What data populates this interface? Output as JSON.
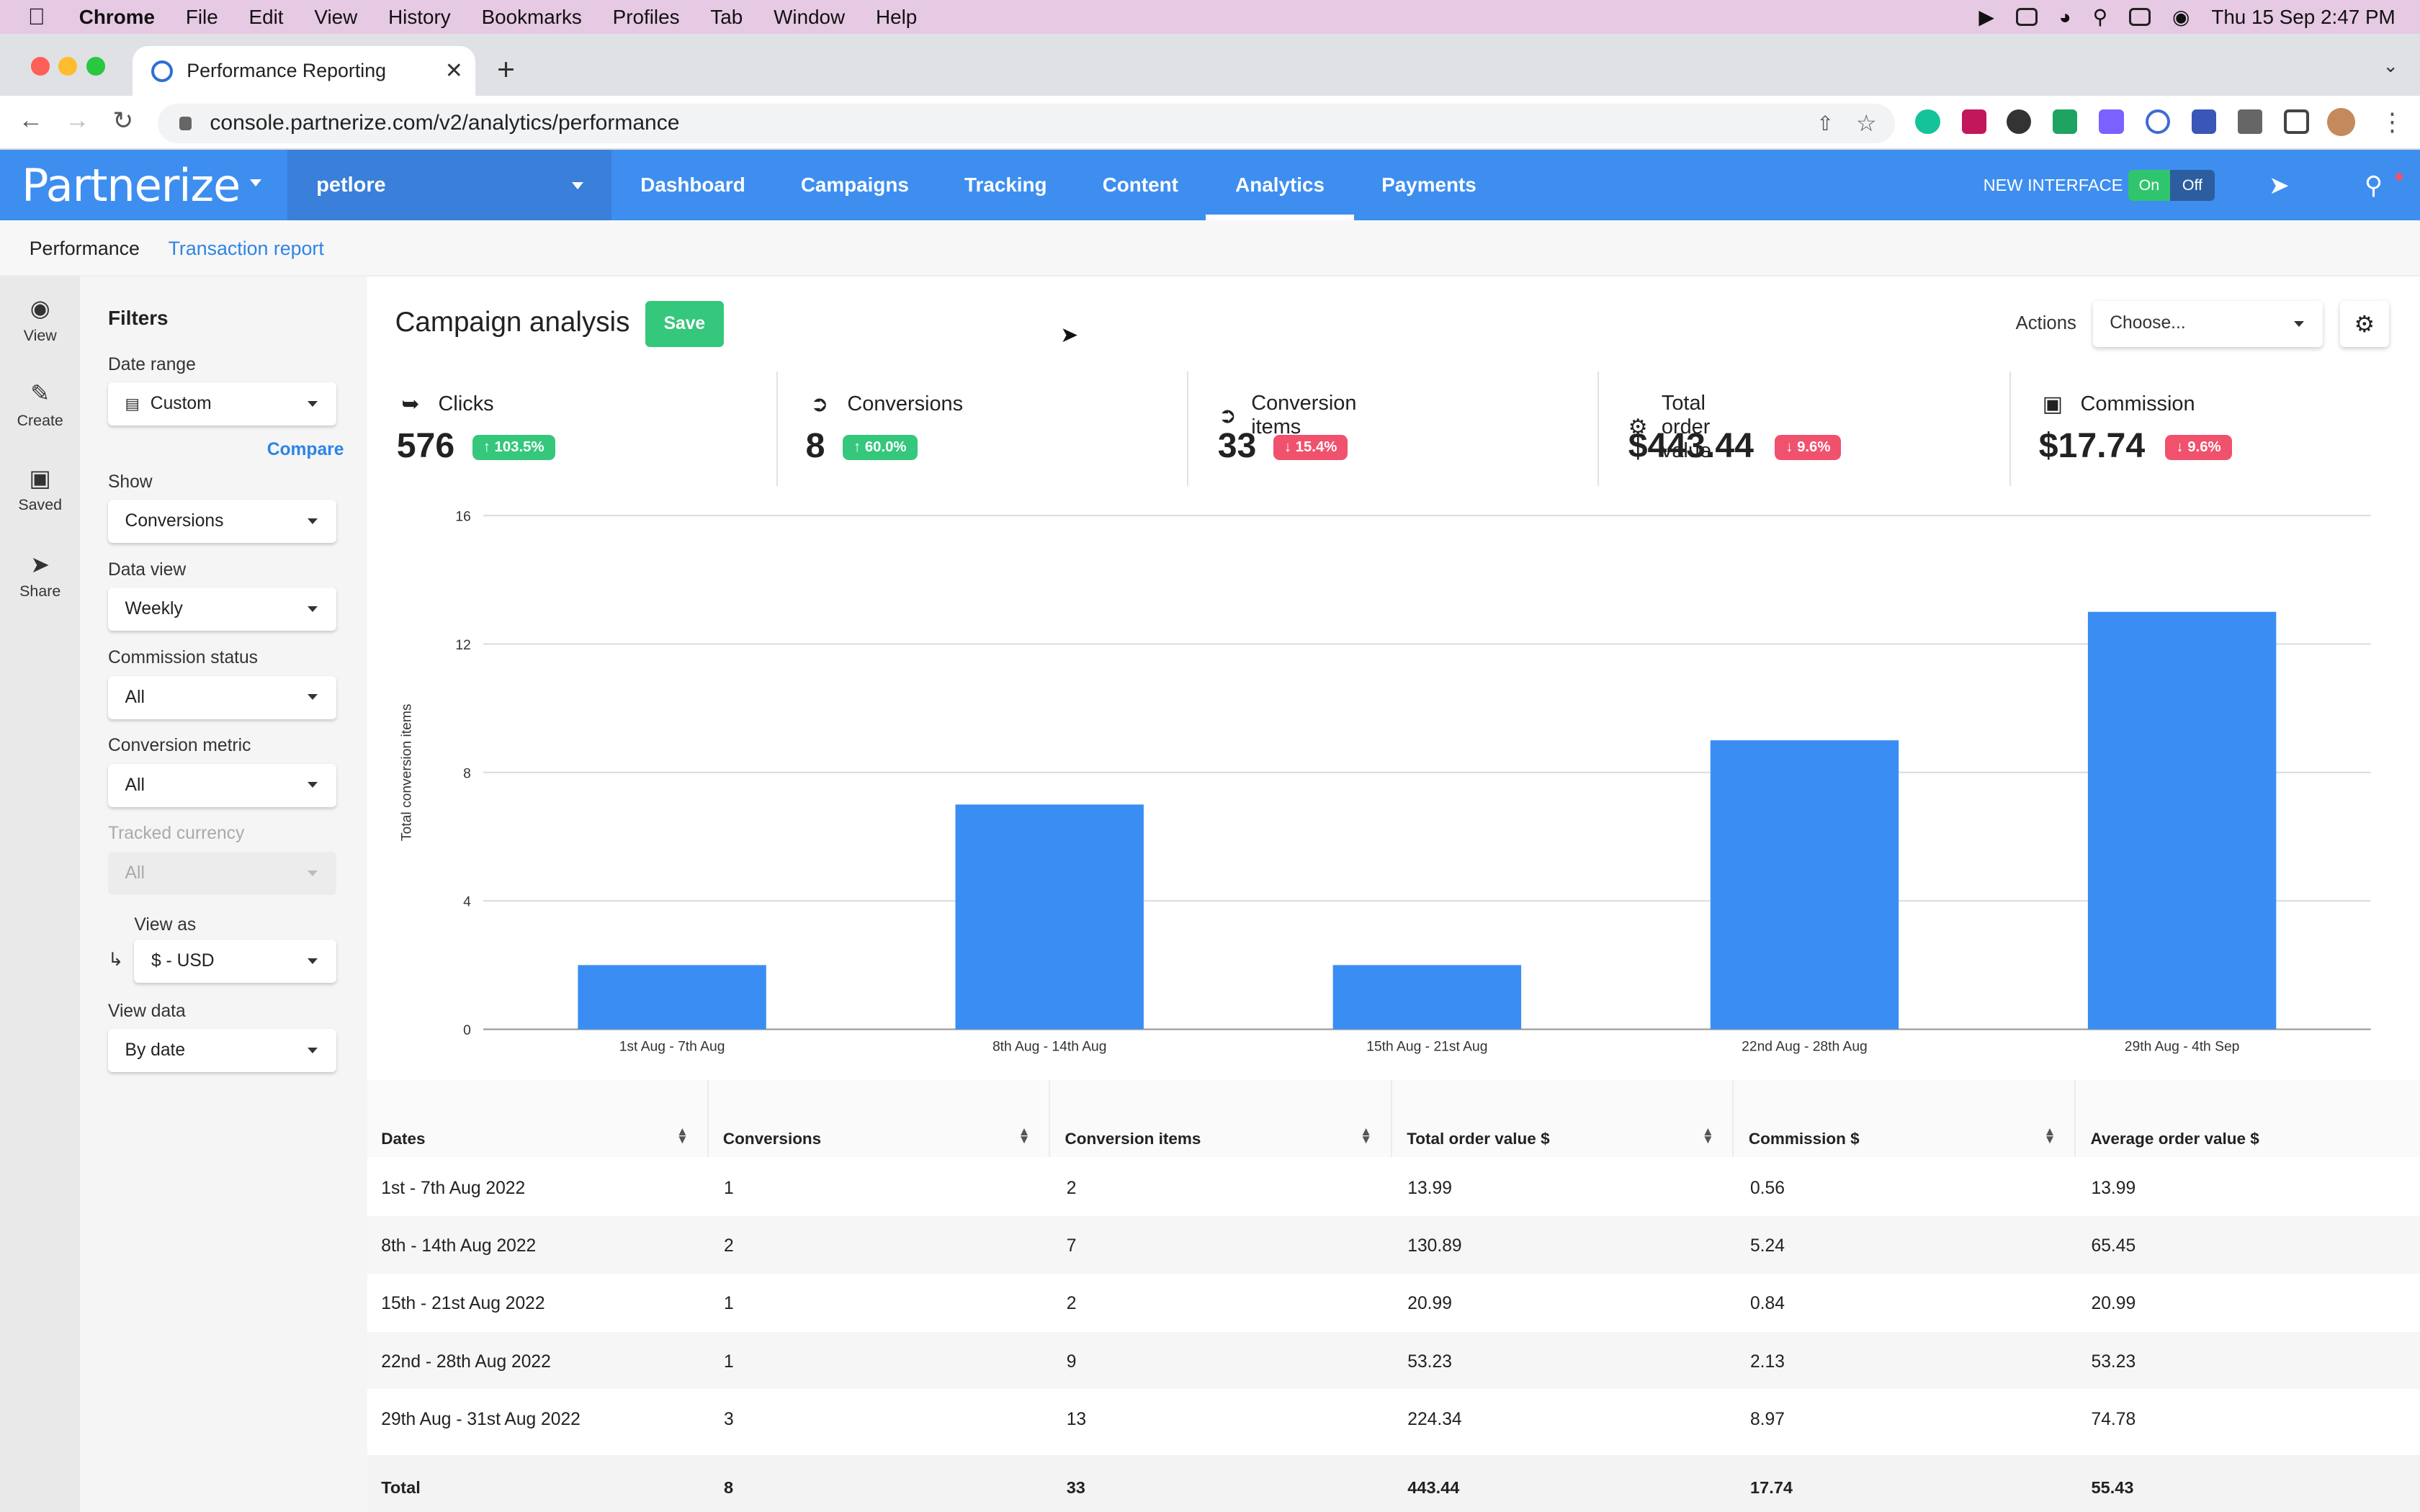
{
  "macos": {
    "menu_items": [
      "Chrome",
      "File",
      "Edit",
      "View",
      "History",
      "Bookmarks",
      "Profiles",
      "Tab",
      "Window",
      "Help"
    ],
    "clock": "Thu 15 Sep  2:47 PM"
  },
  "browser": {
    "tab_title": "Performance Reporting",
    "url": "console.partnerize.com/v2/analytics/performance",
    "new_tab_symbol": "+",
    "tab_close_symbol": "✕"
  },
  "app": {
    "logo": "Partnerize",
    "brand": "petlore",
    "nav": [
      "Dashboard",
      "Campaigns",
      "Tracking",
      "Content",
      "Analytics",
      "Payments"
    ],
    "active_nav": "Analytics",
    "new_interface_label": "NEW INTERFACE",
    "toggle_on": "On",
    "toggle_off": "Off",
    "subnav": {
      "performance": "Performance",
      "transaction_report": "Transaction report"
    },
    "accent": "#3e8ef0",
    "green": "#35c77b",
    "red": "#f0516d"
  },
  "rail": [
    {
      "label": "View",
      "icon": "eye-icon"
    },
    {
      "label": "Create",
      "icon": "pencil-icon"
    },
    {
      "label": "Saved",
      "icon": "floppy-icon"
    },
    {
      "label": "Share",
      "icon": "paper-plane-icon"
    }
  ],
  "filters": {
    "title": "Filters",
    "date_range_label": "Date range",
    "date_range_value": "Custom",
    "compare": "Compare",
    "show_label": "Show",
    "show_value": "Conversions",
    "data_view_label": "Data view",
    "data_view_value": "Weekly",
    "commission_status_label": "Commission status",
    "commission_status_value": "All",
    "conversion_metric_label": "Conversion metric",
    "conversion_metric_value": "All",
    "tracked_currency_label": "Tracked currency",
    "tracked_currency_value": "All",
    "view_as_label": "View as",
    "view_as_value": "$ - USD",
    "view_data_label": "View data",
    "view_data_value": "By date"
  },
  "main": {
    "title": "Campaign analysis",
    "save": "Save",
    "actions_label": "Actions",
    "actions_value": "Choose..."
  },
  "kpis": [
    {
      "label": "Clicks",
      "value": "576",
      "change": "103.5%",
      "dir": "up",
      "icon": "cursor-icon"
    },
    {
      "label": "Conversions",
      "value": "8",
      "change": "60.0%",
      "dir": "up",
      "icon": "arrow-circle-icon"
    },
    {
      "label": "Conversion items",
      "value": "33",
      "change": "15.4%",
      "dir": "down",
      "icon": "arrow-circle-icon"
    },
    {
      "label": "Total order value",
      "value": "$443.44",
      "change": "9.6%",
      "dir": "down",
      "icon": "cart-icon"
    },
    {
      "label": "Commission",
      "value": "$17.74",
      "change": "9.6%",
      "dir": "down",
      "icon": "wallet-icon"
    }
  ],
  "chart_data": {
    "type": "bar",
    "categories": [
      "1st Aug - 7th Aug",
      "8th Aug - 14th Aug",
      "15th Aug - 21st Aug",
      "22nd Aug - 28th Aug",
      "29th Aug - 4th Sep"
    ],
    "values": [
      2,
      7,
      2,
      9,
      13
    ],
    "ylabel": "Total conversion items",
    "ylim": [
      0,
      16
    ],
    "yticks": [
      0,
      4,
      8,
      12,
      16
    ],
    "grid": true,
    "bar_color": "#3a8ef3"
  },
  "table": {
    "headers": [
      "Dates",
      "Conversions",
      "Conversion items",
      "Total order value $",
      "Commission $",
      "Average order value $"
    ],
    "rows": [
      [
        "1st - 7th Aug 2022",
        "1",
        "2",
        "13.99",
        "0.56",
        "13.99"
      ],
      [
        "8th - 14th Aug 2022",
        "2",
        "7",
        "130.89",
        "5.24",
        "65.45"
      ],
      [
        "15th - 21st Aug 2022",
        "1",
        "2",
        "20.99",
        "0.84",
        "20.99"
      ],
      [
        "22nd - 28th Aug 2022",
        "1",
        "9",
        "53.23",
        "2.13",
        "53.23"
      ],
      [
        "29th Aug - 31st Aug 2022",
        "3",
        "13",
        "224.34",
        "8.97",
        "74.78"
      ]
    ],
    "total": [
      "Total",
      "8",
      "33",
      "443.44",
      "17.74",
      "55.43"
    ]
  }
}
